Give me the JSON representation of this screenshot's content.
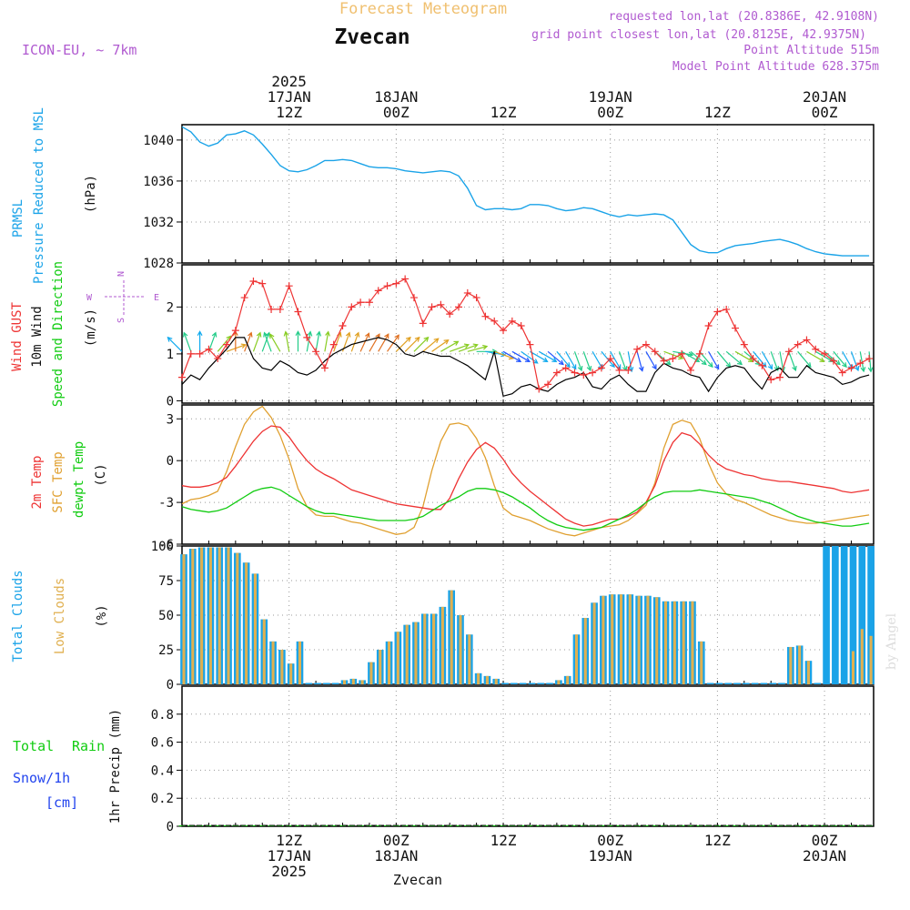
{
  "header": {
    "app_title": "Forecast Meteogram",
    "location": "Zvecan",
    "model": "ICON-EU, ~ 7km",
    "requested": "requested lon,lat (20.8386E, 42.9108N)",
    "grid_point": "grid point closest lon,lat (20.8125E, 42.9375N)",
    "point_altitude": "Point Altitude 515m",
    "model_altitude": "Model Point Altitude 628.375m",
    "footer_location": "Zvecan",
    "credit": "by Angel"
  },
  "time_axis": {
    "top_ticks": [
      {
        "lines": [
          "2025",
          "17JAN",
          "12Z"
        ],
        "h": 12
      },
      {
        "lines": [
          "18JAN",
          "00Z"
        ],
        "h": 24
      },
      {
        "lines": [
          "12Z"
        ],
        "h": 36
      },
      {
        "lines": [
          "19JAN",
          "00Z"
        ],
        "h": 48
      },
      {
        "lines": [
          "12Z"
        ],
        "h": 60
      },
      {
        "lines": [
          "20JAN",
          "00Z"
        ],
        "h": 72
      }
    ],
    "bottom_ticks": [
      {
        "lines": [
          "12Z",
          "17JAN",
          "2025"
        ],
        "h": 12
      },
      {
        "lines": [
          "00Z",
          "18JAN"
        ],
        "h": 24
      },
      {
        "lines": [
          "12Z"
        ],
        "h": 36
      },
      {
        "lines": [
          "00Z",
          "19JAN"
        ],
        "h": 48
      },
      {
        "lines": [
          "12Z"
        ],
        "h": 60
      },
      {
        "lines": [
          "00Z",
          "20JAN"
        ],
        "h": 72
      }
    ]
  },
  "panels": {
    "pressure": {
      "label1": "PRMSL",
      "label2": "Pressure Reduced to MSL",
      "unit": "(hPa)"
    },
    "wind": {
      "label1": "Wind GUST",
      "label2": "10m Wind",
      "label3": "Speed and Direction",
      "unit": "(m/s)",
      "compass_n": "N",
      "compass_s": "S",
      "compass_w": "W",
      "compass_e": "E"
    },
    "temp": {
      "label1": "2m Temp",
      "label2": "SFC Temp",
      "label3": "dewpt Temp",
      "unit": "(C)"
    },
    "clouds": {
      "label1": "Total Clouds",
      "label2": "Low Clouds",
      "unit": "(%)"
    },
    "precip": {
      "label1": "Total",
      "label2": "Rain",
      "label3": "Snow/1h",
      "label4": "[cm]",
      "unit": "1hr Precip (mm)"
    }
  },
  "colors": {
    "pressure": "#1aa3e8",
    "gust": "#ee3333",
    "wind": "#000000",
    "t2m": "#ee3333",
    "tsfc": "#e0a030",
    "dew": "#11cc11",
    "total_clouds": "#1aa3e8",
    "low_clouds": "#e0b050",
    "rain": "#11cc11",
    "snow": "#2244ee",
    "meta": "#b05ad0",
    "title_orange": "#f0c070"
  },
  "chart_data": [
    {
      "type": "line",
      "name": "PRMSL",
      "ylim": [
        1028,
        1041.5
      ],
      "yticks": [
        1028,
        1032,
        1036,
        1040
      ],
      "x_hours": [
        0,
        1,
        2,
        3,
        4,
        5,
        6,
        7,
        8,
        9,
        10,
        11,
        12,
        13,
        14,
        15,
        16,
        17,
        18,
        19,
        20,
        21,
        22,
        23,
        24,
        25,
        26,
        27,
        28,
        29,
        30,
        31,
        32,
        33,
        34,
        35,
        36,
        37,
        38,
        39,
        40,
        41,
        42,
        43,
        44,
        45,
        46,
        47,
        48,
        49,
        50,
        51,
        52,
        53,
        54,
        55,
        56,
        57,
        58,
        59,
        60,
        61,
        62,
        63,
        64,
        65,
        66,
        67,
        68,
        69,
        70,
        71,
        72,
        73,
        74,
        75,
        76,
        77
      ],
      "values": [
        1041.3,
        1040.8,
        1039.8,
        1039.4,
        1039.7,
        1040.5,
        1040.6,
        1040.9,
        1040.5,
        1039.6,
        1038.6,
        1037.5,
        1037.0,
        1036.9,
        1037.1,
        1037.5,
        1038.0,
        1038.0,
        1038.1,
        1038.0,
        1037.7,
        1037.4,
        1037.3,
        1037.3,
        1037.2,
        1037.0,
        1036.9,
        1036.8,
        1036.9,
        1037.0,
        1036.9,
        1036.5,
        1035.3,
        1033.6,
        1033.2,
        1033.3,
        1033.3,
        1033.2,
        1033.3,
        1033.7,
        1033.7,
        1033.6,
        1033.3,
        1033.1,
        1033.2,
        1033.4,
        1033.3,
        1033.0,
        1032.7,
        1032.5,
        1032.7,
        1032.6,
        1032.7,
        1032.8,
        1032.7,
        1032.2,
        1031.0,
        1029.8,
        1029.2,
        1029.0,
        1029.0,
        1029.4,
        1029.7,
        1029.8,
        1029.9,
        1030.1,
        1030.2,
        1030.3,
        1030.1,
        1029.8,
        1029.4,
        1029.1,
        1028.9,
        1028.8,
        1028.7,
        1028.7,
        1028.7,
        1028.7
      ]
    },
    {
      "type": "line",
      "name": "Wind",
      "ylim": [
        -0.05,
        2.9
      ],
      "yticks": [
        0,
        1,
        2
      ],
      "x_hours": [
        0,
        1,
        2,
        3,
        4,
        5,
        6,
        7,
        8,
        9,
        10,
        11,
        12,
        13,
        14,
        15,
        16,
        17,
        18,
        19,
        20,
        21,
        22,
        23,
        24,
        25,
        26,
        27,
        28,
        29,
        30,
        31,
        32,
        33,
        34,
        35,
        36,
        37,
        38,
        39,
        40,
        41,
        42,
        43,
        44,
        45,
        46,
        47,
        48,
        49,
        50,
        51,
        52,
        53,
        54,
        55,
        56,
        57,
        58,
        59,
        60,
        61,
        62,
        63,
        64,
        65,
        66,
        67,
        68,
        69,
        70,
        71,
        72,
        73,
        74,
        75,
        76,
        77
      ],
      "gust": [
        0.5,
        1.0,
        1.0,
        1.1,
        0.9,
        1.2,
        1.5,
        2.2,
        2.55,
        2.5,
        1.95,
        1.95,
        2.45,
        1.9,
        1.35,
        1.05,
        0.7,
        1.2,
        1.6,
        2.0,
        2.1,
        2.1,
        2.35,
        2.45,
        2.5,
        2.6,
        2.2,
        1.65,
        2.0,
        2.05,
        1.85,
        2.0,
        2.3,
        2.2,
        1.8,
        1.7,
        1.5,
        1.7,
        1.6,
        1.2,
        0.25,
        0.35,
        0.6,
        0.7,
        0.6,
        0.55,
        0.6,
        0.7,
        0.9,
        0.65,
        0.65,
        1.1,
        1.2,
        1.05,
        0.85,
        0.9,
        1.0,
        0.65,
        1.0,
        1.6,
        1.9,
        1.95,
        1.55,
        1.2,
        0.9,
        0.75,
        0.45,
        0.5,
        1.05,
        1.2,
        1.3,
        1.1,
        1.0,
        0.85,
        0.6,
        0.7,
        0.8,
        0.9
      ],
      "wind": [
        0.35,
        0.55,
        0.45,
        0.7,
        0.9,
        1.1,
        1.35,
        1.35,
        0.9,
        0.7,
        0.65,
        0.85,
        0.75,
        0.6,
        0.55,
        0.65,
        0.85,
        1.0,
        1.1,
        1.2,
        1.25,
        1.3,
        1.35,
        1.3,
        1.2,
        1.0,
        0.95,
        1.05,
        1.0,
        0.95,
        0.95,
        0.85,
        0.75,
        0.6,
        0.45,
        1.05,
        0.1,
        0.15,
        0.3,
        0.35,
        0.25,
        0.2,
        0.35,
        0.45,
        0.5,
        0.6,
        0.3,
        0.25,
        0.45,
        0.55,
        0.35,
        0.2,
        0.2,
        0.6,
        0.8,
        0.7,
        0.65,
        0.55,
        0.5,
        0.2,
        0.5,
        0.7,
        0.75,
        0.7,
        0.45,
        0.25,
        0.6,
        0.7,
        0.5,
        0.5,
        0.75,
        0.6,
        0.55,
        0.5,
        0.35,
        0.4,
        0.5,
        0.55
      ]
    },
    {
      "type": "line",
      "name": "Temperature",
      "ylim": [
        -6,
        4
      ],
      "yticks": [
        -6,
        -3,
        0,
        3
      ],
      "x_hours": [
        0,
        1,
        2,
        3,
        4,
        5,
        6,
        7,
        8,
        9,
        10,
        11,
        12,
        13,
        14,
        15,
        16,
        17,
        18,
        19,
        20,
        21,
        22,
        23,
        24,
        25,
        26,
        27,
        28,
        29,
        30,
        31,
        32,
        33,
        34,
        35,
        36,
        37,
        38,
        39,
        40,
        41,
        42,
        43,
        44,
        45,
        46,
        47,
        48,
        49,
        50,
        51,
        52,
        53,
        54,
        55,
        56,
        57,
        58,
        59,
        60,
        61,
        62,
        63,
        64,
        65,
        66,
        67,
        68,
        69,
        70,
        71,
        72,
        73,
        74,
        75,
        76,
        77
      ],
      "t2m": [
        -1.8,
        -1.9,
        -1.9,
        -1.8,
        -1.6,
        -1.2,
        -0.4,
        0.5,
        1.4,
        2.1,
        2.5,
        2.4,
        1.7,
        0.8,
        0.0,
        -0.6,
        -1.0,
        -1.3,
        -1.7,
        -2.1,
        -2.3,
        -2.5,
        -2.7,
        -2.9,
        -3.1,
        -3.2,
        -3.3,
        -3.4,
        -3.5,
        -3.5,
        -2.7,
        -1.3,
        -0.1,
        0.8,
        1.3,
        0.9,
        0.1,
        -0.9,
        -1.6,
        -2.2,
        -2.7,
        -3.2,
        -3.7,
        -4.2,
        -4.5,
        -4.7,
        -4.6,
        -4.4,
        -4.2,
        -4.2,
        -4.0,
        -3.7,
        -3.0,
        -1.8,
        0.0,
        1.3,
        2.0,
        1.8,
        1.2,
        0.4,
        -0.2,
        -0.6,
        -0.8,
        -1.0,
        -1.1,
        -1.3,
        -1.4,
        -1.5,
        -1.5,
        -1.6,
        -1.7,
        -1.8,
        -1.9,
        -2.0,
        -2.2,
        -2.3,
        -2.2,
        -2.1
      ],
      "tsfc": [
        -3.1,
        -2.8,
        -2.7,
        -2.5,
        -2.2,
        -0.8,
        1.0,
        2.6,
        3.5,
        3.9,
        3.1,
        1.8,
        0.1,
        -2.0,
        -3.3,
        -3.9,
        -4.0,
        -4.0,
        -4.2,
        -4.4,
        -4.5,
        -4.7,
        -4.9,
        -5.1,
        -5.3,
        -5.2,
        -4.8,
        -3.3,
        -0.7,
        1.4,
        2.6,
        2.7,
        2.5,
        1.6,
        0.2,
        -1.8,
        -3.4,
        -3.9,
        -4.1,
        -4.3,
        -4.6,
        -4.9,
        -5.1,
        -5.3,
        -5.4,
        -5.2,
        -5.0,
        -4.8,
        -4.7,
        -4.6,
        -4.3,
        -3.8,
        -3.2,
        -1.6,
        0.9,
        2.6,
        2.9,
        2.7,
        1.6,
        -0.2,
        -1.6,
        -2.4,
        -2.8,
        -3.0,
        -3.3,
        -3.6,
        -3.9,
        -4.1,
        -4.3,
        -4.4,
        -4.5,
        -4.5,
        -4.4,
        -4.3,
        -4.2,
        -4.1,
        -4.0,
        -3.9
      ],
      "dew": [
        -3.3,
        -3.5,
        -3.6,
        -3.7,
        -3.6,
        -3.4,
        -3.0,
        -2.6,
        -2.2,
        -2.0,
        -1.9,
        -2.1,
        -2.5,
        -2.9,
        -3.3,
        -3.6,
        -3.8,
        -3.8,
        -3.9,
        -4.0,
        -4.1,
        -4.2,
        -4.3,
        -4.3,
        -4.3,
        -4.3,
        -4.2,
        -4.0,
        -3.6,
        -3.2,
        -2.9,
        -2.6,
        -2.2,
        -2.0,
        -2.0,
        -2.1,
        -2.3,
        -2.6,
        -3.0,
        -3.4,
        -3.9,
        -4.3,
        -4.6,
        -4.8,
        -4.9,
        -5.0,
        -4.9,
        -4.8,
        -4.5,
        -4.2,
        -3.9,
        -3.5,
        -3.0,
        -2.6,
        -2.3,
        -2.2,
        -2.2,
        -2.2,
        -2.1,
        -2.2,
        -2.3,
        -2.4,
        -2.5,
        -2.6,
        -2.7,
        -2.9,
        -3.1,
        -3.4,
        -3.7,
        -4.0,
        -4.2,
        -4.4,
        -4.5,
        -4.6,
        -4.7,
        -4.7,
        -4.6,
        -4.5
      ]
    },
    {
      "type": "bar",
      "name": "Clouds",
      "ylim": [
        0,
        100
      ],
      "yticks": [
        0,
        25,
        50,
        75,
        100
      ],
      "x_hours": [
        0,
        1,
        2,
        3,
        4,
        5,
        6,
        7,
        8,
        9,
        10,
        11,
        12,
        13,
        14,
        15,
        16,
        17,
        18,
        19,
        20,
        21,
        22,
        23,
        24,
        25,
        26,
        27,
        28,
        29,
        30,
        31,
        32,
        33,
        34,
        35,
        36,
        37,
        38,
        39,
        40,
        41,
        42,
        43,
        44,
        45,
        46,
        47,
        48,
        49,
        50,
        51,
        52,
        53,
        54,
        55,
        56,
        57,
        58,
        59,
        60,
        61,
        62,
        63,
        64,
        65,
        66,
        67,
        68,
        69,
        70,
        71,
        72,
        73,
        74,
        75,
        76,
        77
      ],
      "total": [
        94,
        98,
        99,
        99,
        99,
        99,
        95,
        88,
        80,
        47,
        31,
        25,
        15,
        31,
        0,
        0,
        0,
        0,
        3,
        4,
        3,
        16,
        25,
        31,
        38,
        43,
        45,
        51,
        51,
        56,
        68,
        50,
        36,
        8,
        6,
        4,
        0,
        0,
        0,
        0,
        0,
        0,
        3,
        6,
        36,
        48,
        59,
        64,
        65,
        65,
        65,
        64,
        64,
        63,
        60,
        60,
        60,
        60,
        31,
        0,
        0,
        0,
        0,
        0,
        0,
        0,
        0,
        0,
        27,
        28,
        17,
        0,
        100,
        100,
        100,
        100,
        100,
        100
      ],
      "low": [
        94,
        98,
        99,
        99,
        99,
        99,
        95,
        88,
        80,
        47,
        31,
        25,
        15,
        31,
        0,
        0,
        0,
        0,
        3,
        4,
        3,
        16,
        25,
        31,
        38,
        43,
        45,
        51,
        51,
        56,
        68,
        50,
        36,
        8,
        6,
        4,
        0,
        0,
        0,
        0,
        0,
        0,
        3,
        6,
        36,
        48,
        59,
        64,
        65,
        65,
        65,
        64,
        64,
        63,
        60,
        60,
        60,
        60,
        31,
        0,
        0,
        0,
        0,
        0,
        0,
        0,
        0,
        0,
        27,
        28,
        17,
        0,
        0,
        0,
        0,
        24,
        40,
        35
      ]
    },
    {
      "type": "bar",
      "name": "Precipitation",
      "ylim": [
        0,
        1
      ],
      "yticks": [
        0,
        0.2,
        0.4,
        0.6,
        0.8
      ],
      "x_hours": [
        0,
        1,
        2,
        3,
        4,
        5,
        6,
        7,
        8,
        9,
        10,
        11,
        12,
        13,
        14,
        15,
        16,
        17,
        18,
        19,
        20,
        21,
        22,
        23,
        24,
        25,
        26,
        27,
        28,
        29,
        30,
        31,
        32,
        33,
        34,
        35,
        36,
        37,
        38,
        39,
        40,
        41,
        42,
        43,
        44,
        45,
        46,
        47,
        48,
        49,
        50,
        51,
        52,
        53,
        54,
        55,
        56,
        57,
        58,
        59,
        60,
        61,
        62,
        63,
        64,
        65,
        66,
        67,
        68,
        69,
        70,
        71,
        72,
        73,
        74,
        75,
        76,
        77
      ],
      "total": [
        0,
        0,
        0,
        0,
        0,
        0,
        0,
        0,
        0,
        0,
        0,
        0,
        0,
        0,
        0,
        0,
        0,
        0,
        0,
        0,
        0,
        0,
        0,
        0,
        0,
        0,
        0,
        0,
        0,
        0,
        0,
        0,
        0,
        0,
        0,
        0,
        0,
        0,
        0,
        0,
        0,
        0,
        0,
        0,
        0,
        0,
        0,
        0,
        0,
        0,
        0,
        0,
        0,
        0,
        0,
        0,
        0,
        0,
        0,
        0,
        0,
        0,
        0,
        0,
        0,
        0,
        0,
        0,
        0,
        0,
        0,
        0,
        0,
        0,
        0,
        0,
        0,
        0
      ]
    }
  ],
  "wind_dirs": [
    135,
    160,
    180,
    200,
    220,
    250,
    180,
    200,
    200,
    200,
    160,
    150,
    170,
    180,
    190,
    190,
    190,
    200,
    200,
    200,
    205,
    210,
    210,
    215,
    225,
    225,
    225,
    230,
    235,
    240,
    250,
    250,
    255,
    270,
    280,
    290,
    300,
    300,
    305,
    300,
    300,
    310,
    320,
    330,
    340,
    340,
    330,
    320,
    330,
    340,
    350,
    345,
    330,
    310,
    290,
    280,
    300,
    310,
    320,
    330,
    320,
    310,
    300,
    310,
    320,
    330,
    340,
    350,
    340,
    320,
    300,
    300,
    310,
    320,
    330,
    340,
    350,
    355
  ]
}
